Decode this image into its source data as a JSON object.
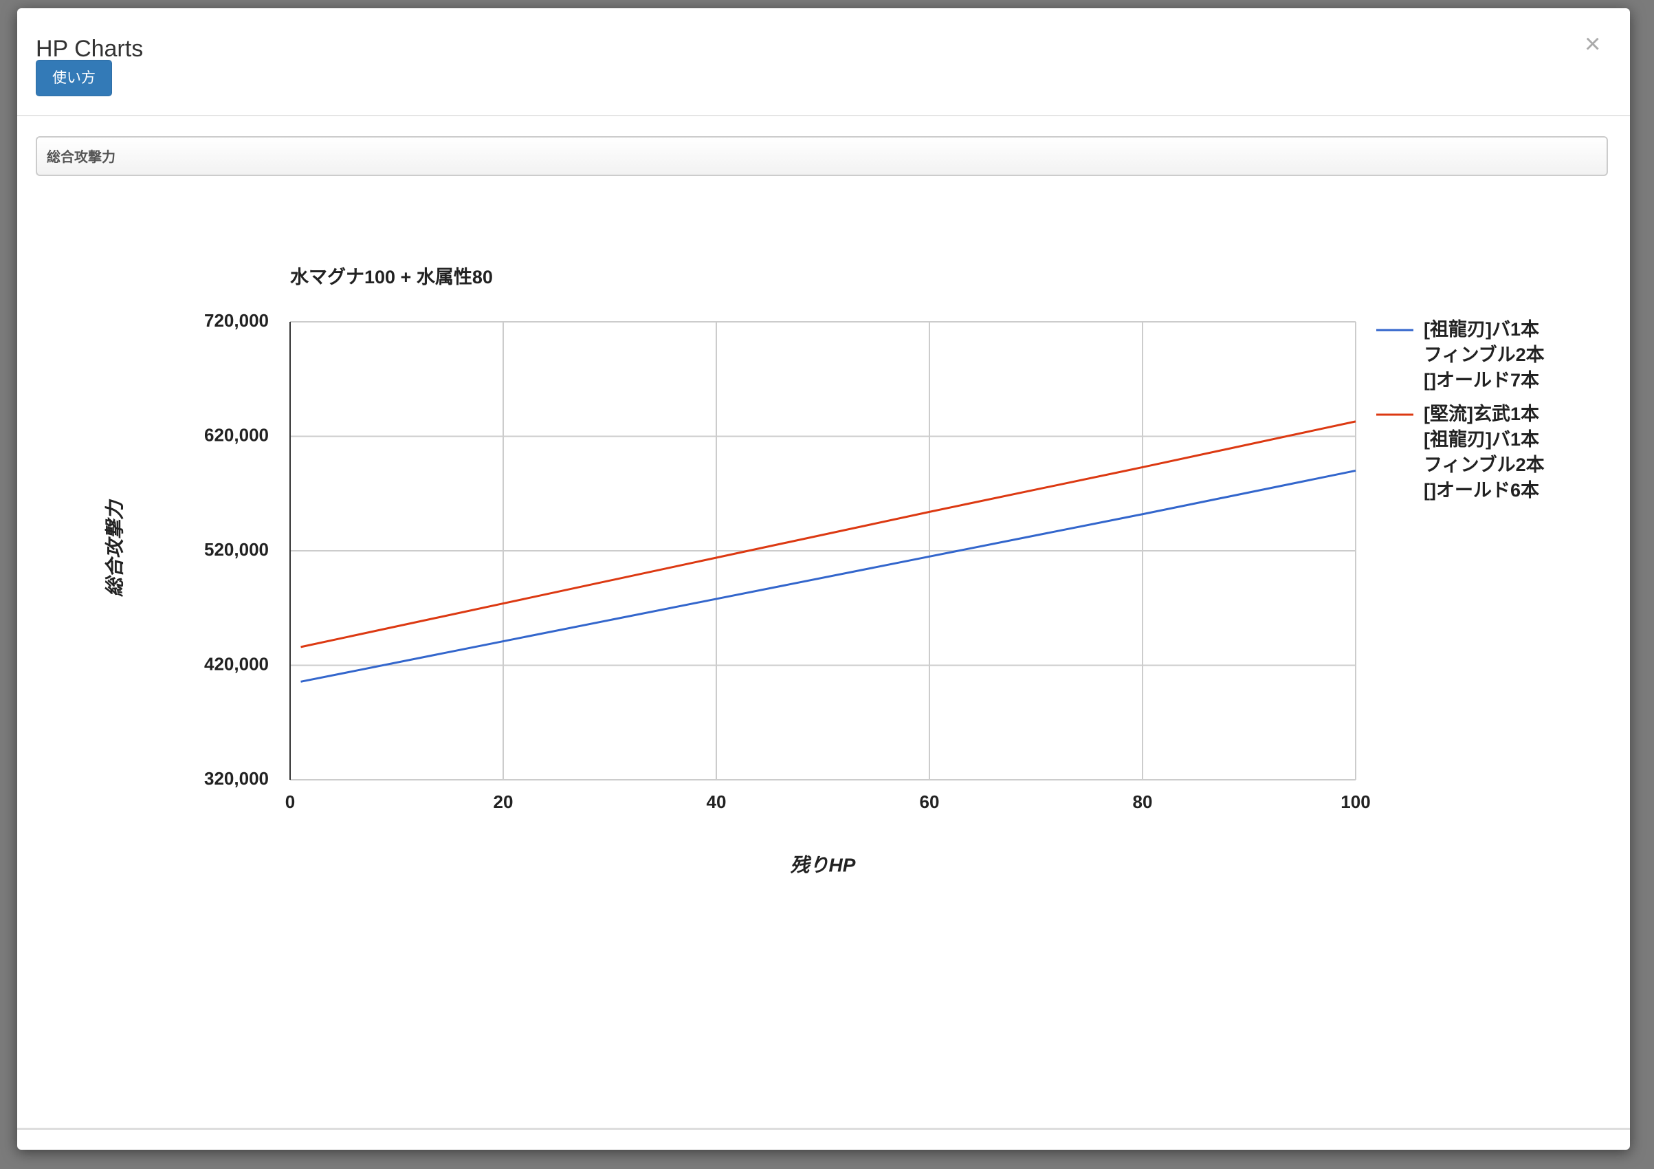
{
  "modal": {
    "title": "HP Charts",
    "help_button": "使い方",
    "close": "×",
    "select": "総合攻撃力"
  },
  "chart_data": {
    "type": "line",
    "title": "水マグナ100 + 水属性80",
    "x_label": "残りHP",
    "y_label": "総合攻撃力",
    "x": [
      1,
      20,
      40,
      60,
      80,
      100
    ],
    "series": [
      {
        "name": "[祖龍刃]バ1本\nフィンブル2本\n[]オールド7本",
        "color": "#3366cc",
        "values": [
          405700,
          441000,
          478000,
          515000,
          552000,
          590000
        ]
      },
      {
        "name": "[堅流]玄武1本\n[祖龍刃]バ1本\nフィンブル2本\n[]オールド6本",
        "color": "#dc3912",
        "values": [
          436000,
          474000,
          514000,
          554000,
          593000,
          633000
        ]
      }
    ],
    "xlim": [
      0,
      100
    ],
    "xticks": [
      0,
      20,
      40,
      60,
      80,
      100
    ],
    "ylim": [
      320000,
      720000
    ],
    "yticks": [
      {
        "value": 320000,
        "label": "320,000"
      },
      {
        "value": 420000,
        "label": "420,000"
      },
      {
        "value": 520000,
        "label": "520,000"
      },
      {
        "value": 620000,
        "label": "620,000"
      },
      {
        "value": 720000,
        "label": "720,000"
      }
    ],
    "grid": true,
    "legend": "right"
  }
}
